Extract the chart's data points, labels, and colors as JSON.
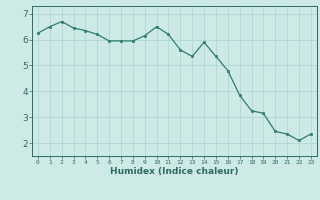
{
  "x": [
    0,
    1,
    2,
    3,
    4,
    5,
    6,
    7,
    8,
    9,
    10,
    11,
    12,
    13,
    14,
    15,
    16,
    17,
    18,
    19,
    20,
    21,
    22,
    23
  ],
  "y": [
    6.25,
    6.5,
    6.7,
    6.45,
    6.35,
    6.2,
    5.95,
    5.95,
    5.95,
    6.15,
    6.5,
    6.2,
    5.6,
    5.35,
    5.9,
    5.35,
    4.8,
    3.85,
    3.25,
    3.15,
    2.45,
    2.35,
    2.1,
    2.35
  ],
  "line_color": "#2e7d6e",
  "marker_color": "#2e7d6e",
  "bg_color": "#ceeae7",
  "grid_color": "#b0d8d4",
  "axis_color": "#2e6b60",
  "xlabel": "Humidex (Indice chaleur)",
  "xlim": [
    -0.5,
    23.5
  ],
  "ylim": [
    1.5,
    7.3
  ],
  "yticks": [
    2,
    3,
    4,
    5,
    6,
    7
  ],
  "xticks": [
    0,
    1,
    2,
    3,
    4,
    5,
    6,
    7,
    8,
    9,
    10,
    11,
    12,
    13,
    14,
    15,
    16,
    17,
    18,
    19,
    20,
    21,
    22,
    23
  ]
}
